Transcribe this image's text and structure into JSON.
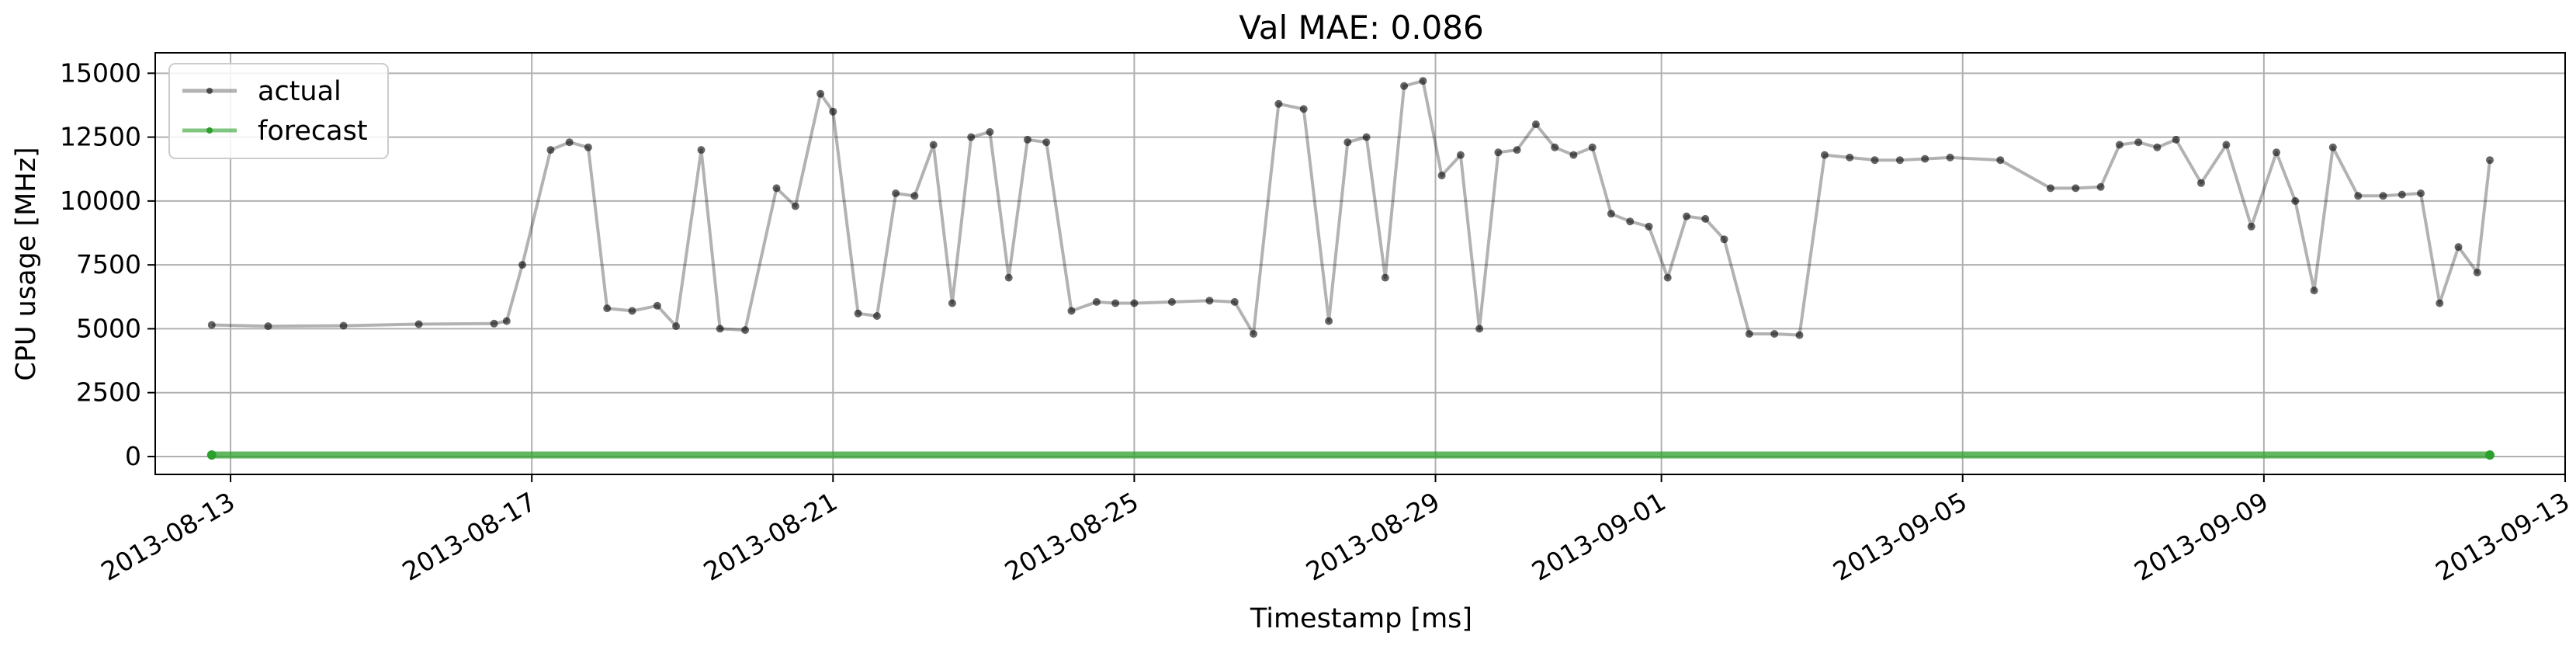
{
  "chart_data": {
    "type": "line",
    "title": "Val MAE: 0.086",
    "xlabel": "Timestamp [ms]",
    "ylabel": "CPU usage [MHz]",
    "x_ticks": [
      "2013-08-13",
      "2013-08-17",
      "2013-08-21",
      "2013-08-25",
      "2013-08-29",
      "2013-09-01",
      "2013-09-05",
      "2013-09-09",
      "2013-09-13"
    ],
    "x_range": [
      "2013-08-12",
      "2013-09-13"
    ],
    "y_ticks": [
      0,
      2500,
      5000,
      7500,
      10000,
      12500,
      15000
    ],
    "ylim": [
      -700,
      15800
    ],
    "grid": true,
    "legend": {
      "position": "top-left",
      "entries": [
        "actual",
        "forecast"
      ]
    },
    "colors": {
      "actual": "#000000",
      "forecast": "#2ca02c",
      "grid": "#b0b0b0"
    },
    "series": [
      {
        "name": "actual",
        "x": [
          "2013-08-12 18:00",
          "2013-08-13 12:00",
          "2013-08-14 12:00",
          "2013-08-15 12:00",
          "2013-08-16 12:00",
          "2013-08-16 16:00",
          "2013-08-16 21:00",
          "2013-08-17 06:00",
          "2013-08-17 12:00",
          "2013-08-17 18:00",
          "2013-08-18 00:00",
          "2013-08-18 08:00",
          "2013-08-18 16:00",
          "2013-08-18 22:00",
          "2013-08-19 06:00",
          "2013-08-19 12:00",
          "2013-08-19 20:00",
          "2013-08-20 06:00",
          "2013-08-20 12:00",
          "2013-08-20 20:00",
          "2013-08-21 00:00",
          "2013-08-21 08:00",
          "2013-08-21 14:00",
          "2013-08-21 20:00",
          "2013-08-22 02:00",
          "2013-08-22 08:00",
          "2013-08-22 14:00",
          "2013-08-22 20:00",
          "2013-08-23 02:00",
          "2013-08-23 08:00",
          "2013-08-23 14:00",
          "2013-08-23 20:00",
          "2013-08-24 04:00",
          "2013-08-24 12:00",
          "2013-08-24 18:00",
          "2013-08-25 00:00",
          "2013-08-25 12:00",
          "2013-08-26 00:00",
          "2013-08-26 08:00",
          "2013-08-26 14:00",
          "2013-08-26 22:00",
          "2013-08-27 06:00",
          "2013-08-27 14:00",
          "2013-08-27 20:00",
          "2013-08-28 02:00",
          "2013-08-28 08:00",
          "2013-08-28 14:00",
          "2013-08-28 20:00",
          "2013-08-29 02:00",
          "2013-08-29 08:00",
          "2013-08-29 14:00",
          "2013-08-29 20:00",
          "2013-08-30 02:00",
          "2013-08-30 08:00",
          "2013-08-30 14:00",
          "2013-08-30 20:00",
          "2013-08-31 02:00",
          "2013-08-31 08:00",
          "2013-08-31 14:00",
          "2013-08-31 20:00",
          "2013-09-01 02:00",
          "2013-09-01 08:00",
          "2013-09-01 14:00",
          "2013-09-01 20:00",
          "2013-09-02 04:00",
          "2013-09-02 12:00",
          "2013-09-02 20:00",
          "2013-09-03 04:00",
          "2013-09-03 12:00",
          "2013-09-03 20:00",
          "2013-09-04 04:00",
          "2013-09-04 12:00",
          "2013-09-04 20:00",
          "2013-09-05 12:00",
          "2013-09-06 04:00",
          "2013-09-06 12:00",
          "2013-09-06 20:00",
          "2013-09-07 02:00",
          "2013-09-07 08:00",
          "2013-09-07 14:00",
          "2013-09-07 20:00",
          "2013-09-08 04:00",
          "2013-09-08 12:00",
          "2013-09-08 20:00",
          "2013-09-09 04:00",
          "2013-09-09 10:00",
          "2013-09-09 16:00",
          "2013-09-09 22:00",
          "2013-09-10 06:00",
          "2013-09-10 14:00",
          "2013-09-10 20:00",
          "2013-09-11 02:00",
          "2013-09-11 08:00",
          "2013-09-11 14:00",
          "2013-09-11 20:00",
          "2013-09-12 00:00"
        ],
        "y": [
          5150,
          5100,
          5120,
          5180,
          5200,
          5300,
          7500,
          12000,
          12300,
          12100,
          5800,
          5700,
          5900,
          5100,
          12000,
          5000,
          4950,
          10500,
          9800,
          14200,
          13500,
          5600,
          5500,
          10300,
          10200,
          12200,
          6000,
          12500,
          12700,
          7000,
          12400,
          12300,
          5700,
          6050,
          6000,
          6000,
          6050,
          6100,
          6050,
          4800,
          13800,
          13600,
          5300,
          12300,
          12500,
          7000,
          14500,
          14700,
          11000,
          11800,
          5000,
          11900,
          12000,
          13000,
          12100,
          11800,
          12100,
          9500,
          9200,
          9000,
          7000,
          9400,
          9300,
          8500,
          4800,
          4800,
          4750,
          11800,
          11700,
          11600,
          11600,
          11650,
          11700,
          11600,
          10500,
          10500,
          10550,
          12200,
          12300,
          12100,
          12400,
          10700,
          12200,
          9000,
          11900,
          10000,
          6500,
          12100,
          10200,
          10200,
          10250,
          10300,
          6000,
          8200,
          7200,
          11600
        ]
      },
      {
        "name": "forecast",
        "x": [
          "2013-08-12 18:00",
          "2013-09-12 00:00"
        ],
        "y": [
          60,
          60
        ]
      }
    ]
  }
}
